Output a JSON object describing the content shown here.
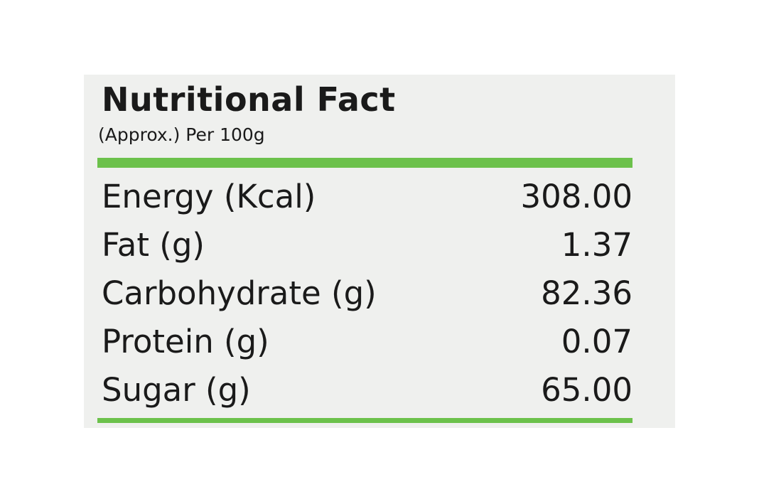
{
  "header": {
    "title": "Nutritional Fact",
    "subtitle": "(Approx.) Per 100g"
  },
  "table": {
    "rows": [
      [
        "Energy (Kcal)",
        "308.00"
      ],
      [
        "Fat (g)",
        "1.37"
      ],
      [
        "Carbohydrate (g)",
        "82.36"
      ],
      [
        "Protein (g)",
        "0.07"
      ],
      [
        "Sugar (g)",
        "65.00"
      ]
    ]
  }
}
